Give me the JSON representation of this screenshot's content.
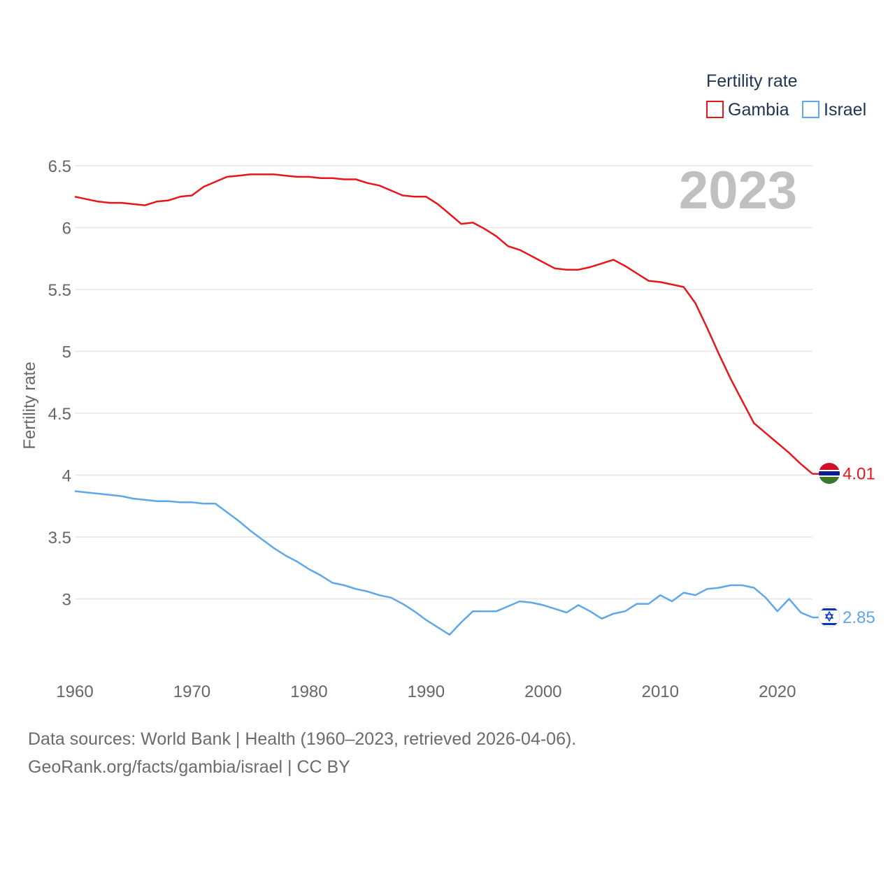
{
  "legend": {
    "title": "Fertility rate",
    "items": [
      "Gambia",
      "Israel"
    ]
  },
  "year_label": "2023",
  "footer": {
    "line1": "Data sources: World Bank | Health (1960–2023, retrieved 2026-04-06).",
    "line2": "GeoRank.org/facts/gambia/israel | CC BY"
  },
  "colors": {
    "gambia": "#e8161a",
    "israel": "#5ea7e8",
    "grid": "#e6e6e6",
    "axis_text": "#666666",
    "year_text": "#c0c0c0",
    "legend_title": "#1f3550"
  },
  "chart_data": {
    "type": "line",
    "title": "",
    "xlabel": "",
    "ylabel": "Fertility rate",
    "xlim": [
      1960,
      2023
    ],
    "ylim": [
      2.5,
      6.5
    ],
    "x_ticks": [
      1960,
      1970,
      1980,
      1990,
      2000,
      2010,
      2020
    ],
    "y_ticks": [
      3,
      3.5,
      4,
      4.5,
      5,
      5.5,
      6,
      6.5
    ],
    "y_tick_labels": [
      "3",
      "3.5",
      "4",
      "4.5",
      "5",
      "5.5",
      "6",
      "6.5"
    ],
    "grid": true,
    "x": [
      1960,
      1961,
      1962,
      1963,
      1964,
      1965,
      1966,
      1967,
      1968,
      1969,
      1970,
      1971,
      1972,
      1973,
      1974,
      1975,
      1976,
      1977,
      1978,
      1979,
      1980,
      1981,
      1982,
      1983,
      1984,
      1985,
      1986,
      1987,
      1988,
      1989,
      1990,
      1991,
      1992,
      1993,
      1994,
      1995,
      1996,
      1997,
      1998,
      1999,
      2000,
      2001,
      2002,
      2003,
      2004,
      2005,
      2006,
      2007,
      2008,
      2009,
      2010,
      2011,
      2012,
      2013,
      2014,
      2015,
      2016,
      2017,
      2018,
      2019,
      2020,
      2021,
      2022,
      2023
    ],
    "series": [
      {
        "name": "Gambia",
        "color": "#e8161a",
        "end_label": "4.01",
        "values": [
          6.25,
          6.23,
          6.21,
          6.2,
          6.2,
          6.19,
          6.18,
          6.21,
          6.22,
          6.25,
          6.26,
          6.33,
          6.37,
          6.41,
          6.42,
          6.43,
          6.43,
          6.43,
          6.42,
          6.41,
          6.41,
          6.4,
          6.4,
          6.39,
          6.39,
          6.36,
          6.34,
          6.3,
          6.26,
          6.25,
          6.25,
          6.19,
          6.11,
          6.03,
          6.04,
          5.99,
          5.93,
          5.85,
          5.82,
          5.77,
          5.72,
          5.67,
          5.66,
          5.66,
          5.68,
          5.71,
          5.74,
          5.69,
          5.63,
          5.57,
          5.56,
          5.54,
          5.52,
          5.39,
          5.19,
          4.98,
          4.78,
          4.6,
          4.42,
          4.34,
          4.26,
          4.18,
          4.09,
          4.01
        ]
      },
      {
        "name": "Israel",
        "color": "#5ea7e8",
        "end_label": "2.85",
        "values": [
          3.87,
          3.86,
          3.85,
          3.84,
          3.83,
          3.81,
          3.8,
          3.79,
          3.79,
          3.78,
          3.78,
          3.77,
          3.77,
          3.7,
          3.63,
          3.55,
          3.48,
          3.41,
          3.35,
          3.3,
          3.24,
          3.19,
          3.13,
          3.11,
          3.08,
          3.06,
          3.03,
          3.01,
          2.96,
          2.9,
          2.83,
          2.77,
          2.71,
          2.81,
          2.9,
          2.9,
          2.9,
          2.94,
          2.98,
          2.97,
          2.95,
          2.92,
          2.89,
          2.95,
          2.9,
          2.84,
          2.88,
          2.9,
          2.96,
          2.96,
          3.03,
          2.98,
          3.05,
          3.03,
          3.08,
          3.09,
          3.11,
          3.11,
          3.09,
          3.01,
          2.9,
          3.0,
          2.89,
          2.85
        ]
      }
    ]
  }
}
